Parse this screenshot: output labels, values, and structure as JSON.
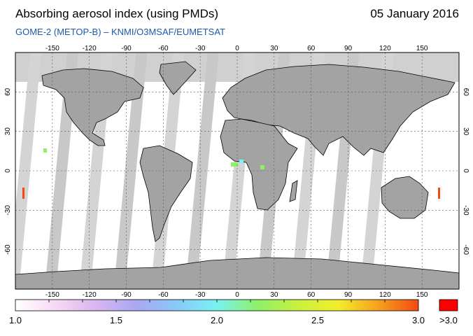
{
  "header": {
    "title": "Absorbing aerosol index (using PMDs)",
    "date": "05 January 2016",
    "subtitle": "GOME-2 (METOP-B)  –   KNMI/O3MSAF/EUMETSAT"
  },
  "map": {
    "lon_ticks": [
      "-150",
      "-120",
      "-90",
      "-60",
      "-30",
      "0",
      "30",
      "60",
      "90",
      "120",
      "150"
    ],
    "lat_ticks": [
      "60",
      "30",
      "0",
      "-30",
      "-60"
    ],
    "colors": {
      "ocean_land": "#ffffff",
      "no_data_polar": "#d0d0d0",
      "orbit_gap_light": "#d4d4d4",
      "orbit_gap_dark": "#a3a3a3",
      "coastline": "#000000",
      "grid": "#555555"
    }
  },
  "colorbar": {
    "labels": [
      "1.0",
      "1.5",
      "2.0",
      "2.5",
      "3.0"
    ],
    "tick_values": [
      -150,
      -120,
      -90,
      -60,
      -30,
      0,
      30,
      60,
      90,
      120,
      150
    ],
    "overflow_label": ">3.0",
    "overflow_color": "#ff0000",
    "gradient": [
      "#ffffff",
      "#f6d9f2",
      "#d9b6f0",
      "#a9a7f2",
      "#8ac8f8",
      "#78f2f2",
      "#8ef06a",
      "#c9f040",
      "#f2ee2a",
      "#f6a020",
      "#f24a12"
    ]
  }
}
